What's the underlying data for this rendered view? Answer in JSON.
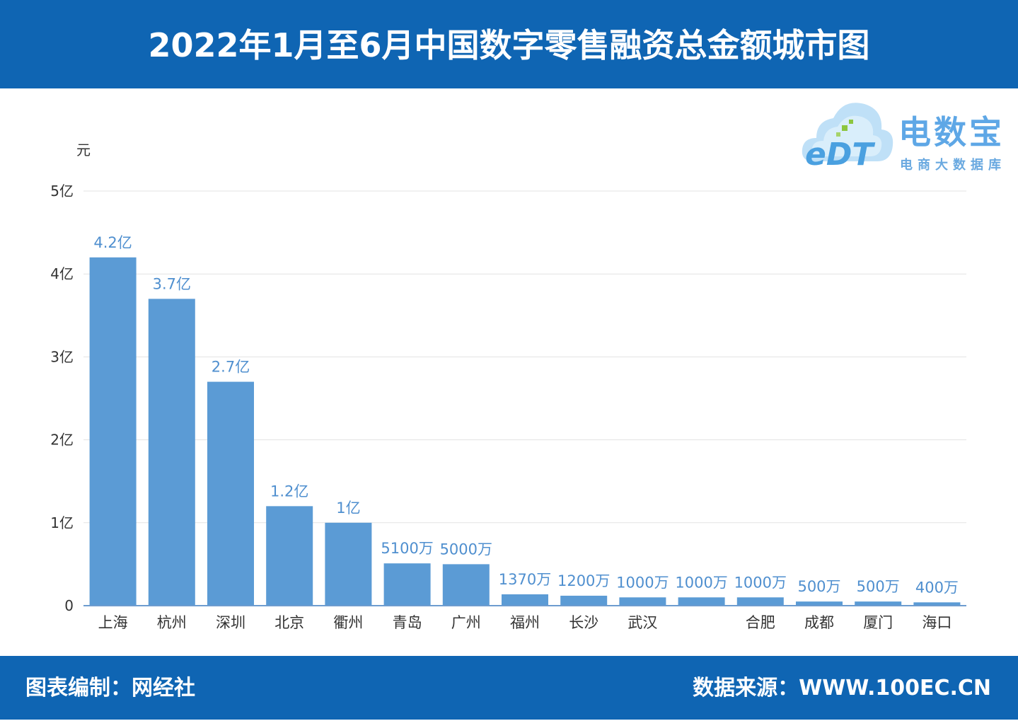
{
  "header": {
    "title": "2022年1月至6月中国数字零售融资总金额城市图"
  },
  "logo": {
    "name": "电数宝",
    "subtitle": "电商大数据库",
    "mark": "eDT",
    "icon": "cloud-logo-icon"
  },
  "footer": {
    "left": "图表编制：网经社",
    "right": "数据来源：WWW.100EC.CN"
  },
  "colors": {
    "bar": "#5b9bd5",
    "header": "#0f65b3",
    "value_label": "#4f8fcf"
  },
  "chart_data": {
    "type": "bar",
    "title": "",
    "ylabel": "元",
    "xlabel": "",
    "ylim": [
      0,
      500000000
    ],
    "yticks": [
      0,
      100000000,
      200000000,
      300000000,
      400000000,
      500000000
    ],
    "ytick_labels": [
      "0",
      "1亿",
      "2亿",
      "3亿",
      "4亿",
      "5亿"
    ],
    "grid": true,
    "categories": [
      "上海",
      "杭州",
      "深圳",
      "北京",
      "衢州",
      "青岛",
      "广州",
      "福州",
      "长沙",
      "武汉",
      "",
      "合肥",
      "成都",
      "厦门",
      "海口"
    ],
    "values": [
      420000000,
      370000000,
      270000000,
      120000000,
      100000000,
      51000000,
      50000000,
      13700000,
      12000000,
      10000000,
      10000000,
      10000000,
      5000000,
      5000000,
      4000000
    ],
    "value_labels": [
      "4.2亿",
      "3.7亿",
      "2.7亿",
      "1.2亿",
      "1亿",
      "5100万",
      "5000万",
      "1370万",
      "1200万",
      "1000万",
      "1000万",
      "1000万",
      "500万",
      "500万",
      "400万"
    ]
  }
}
